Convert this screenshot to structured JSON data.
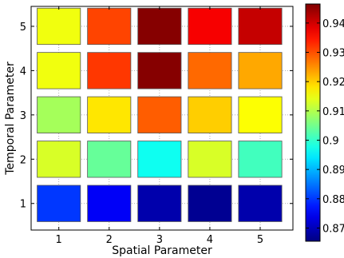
{
  "chart_data": {
    "type": "heatmap",
    "title": "",
    "xlabel": "Spatial Parameter",
    "ylabel": "Temporal Parameter",
    "x_categories": [
      "1",
      "2",
      "3",
      "4",
      "5"
    ],
    "y_categories": [
      "1",
      "2",
      "3",
      "4",
      "5"
    ],
    "values_by_row": [
      [
        0.88,
        0.875,
        0.869,
        0.867,
        0.869
      ],
      [
        0.913,
        0.904,
        0.897,
        0.913,
        0.901
      ],
      [
        0.909,
        0.918,
        0.929,
        0.92,
        0.916
      ],
      [
        0.915,
        0.932,
        0.946,
        0.928,
        0.923
      ],
      [
        0.915,
        0.931,
        0.946,
        0.937,
        0.941
      ]
    ],
    "colorbar": {
      "range": [
        0.8655,
        0.9465
      ],
      "ticks": [
        0.87,
        0.88,
        0.89,
        0.9,
        0.91,
        0.92,
        0.93,
        0.94
      ],
      "tick_labels": [
        "0.87",
        "0.88",
        "0.89",
        "0.9",
        "0.91",
        "0.92",
        "0.93",
        "0.94"
      ],
      "colormap": "jet"
    },
    "grid": true
  }
}
